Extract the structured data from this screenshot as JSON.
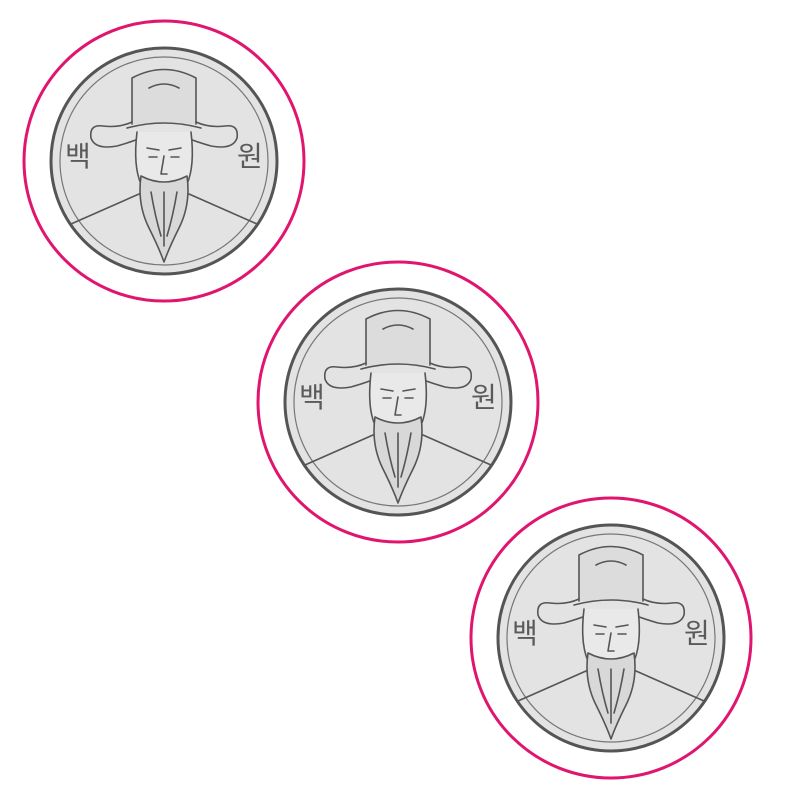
{
  "colors": {
    "outer_ring": "#e0156f",
    "coin_fill": "#e3e3e3",
    "sketch": "#555555"
  },
  "coins": [
    {
      "left_text": "백",
      "right_text": "원"
    },
    {
      "left_text": "백",
      "right_text": "원"
    },
    {
      "left_text": "백",
      "right_text": "원"
    }
  ]
}
